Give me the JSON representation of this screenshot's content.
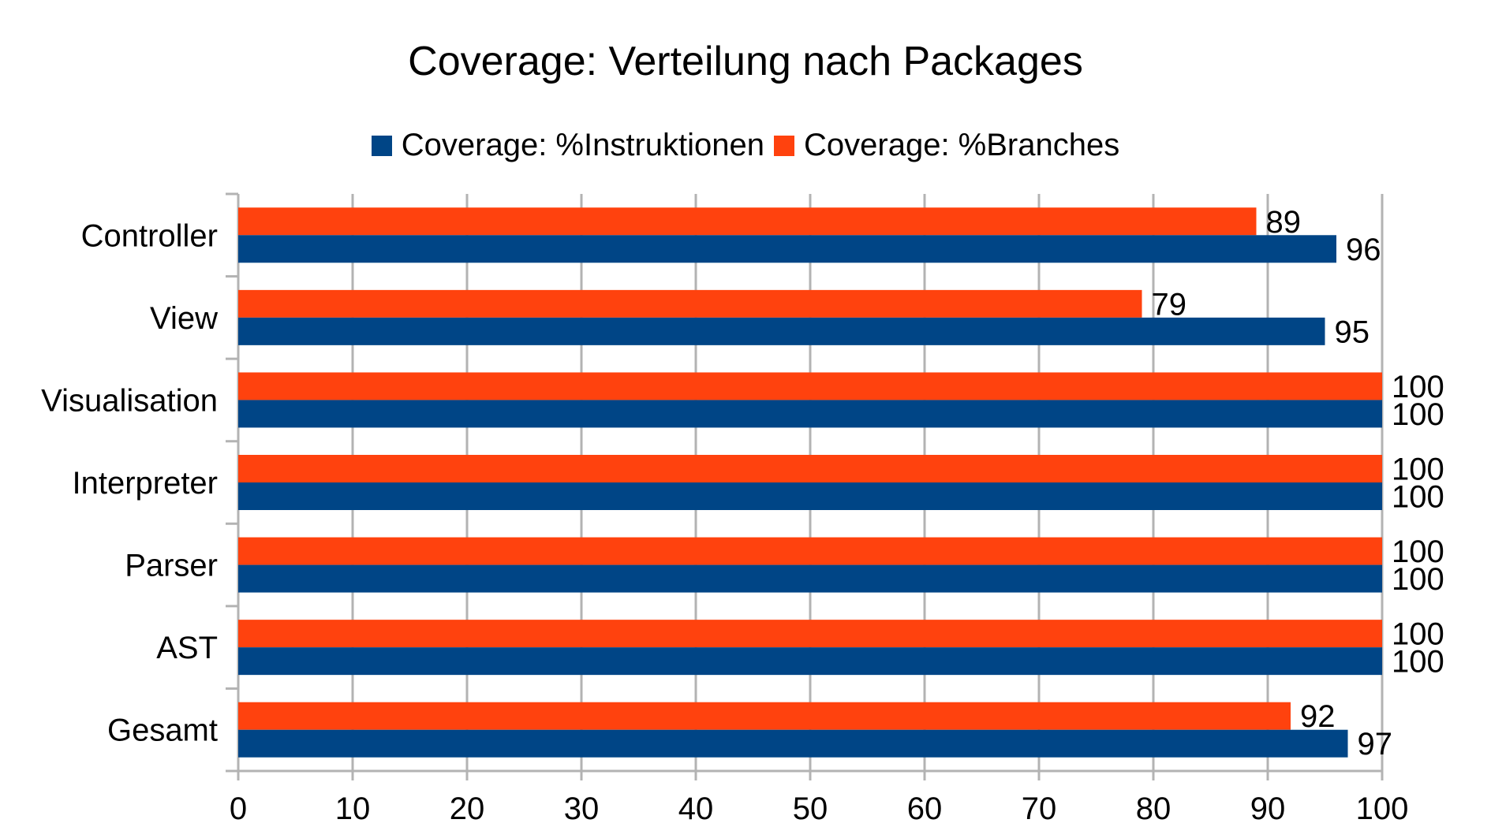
{
  "chart_data": {
    "type": "bar",
    "orientation": "horizontal",
    "title": "Coverage: Verteilung nach Packages",
    "categories": [
      "Controller",
      "View",
      "Visualisation",
      "Interpreter",
      "Parser",
      "AST",
      "Gesamt"
    ],
    "series": [
      {
        "name": "Coverage: %Instruktionen",
        "color": "#004586",
        "values": [
          96,
          95,
          100,
          100,
          100,
          100,
          97
        ]
      },
      {
        "name": "Coverage: %Branches",
        "color": "#ff420e",
        "values": [
          89,
          79,
          100,
          100,
          100,
          100,
          92
        ]
      }
    ],
    "xlim": [
      0,
      100
    ],
    "xticks": [
      0,
      10,
      20,
      30,
      40,
      50,
      60,
      70,
      80,
      90,
      100
    ],
    "grid": true,
    "legend_position": "top"
  }
}
